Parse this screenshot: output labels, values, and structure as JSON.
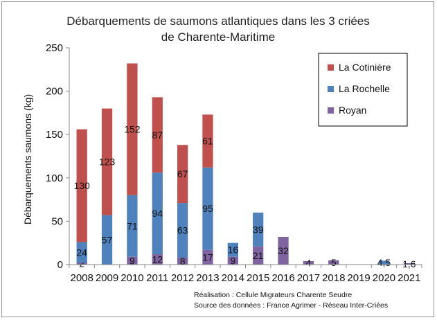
{
  "chart_data": {
    "type": "bar",
    "stacked": true,
    "title_line1": "Débarquements de saumons atlantiques dans les 3 criées",
    "title_line2": "de Charente-Maritime",
    "ylabel": "Débarquements saumons (kg)",
    "xlabel": "",
    "ylim": [
      0,
      250
    ],
    "yticks": [
      0,
      50,
      100,
      150,
      200,
      250
    ],
    "grid": "none",
    "legend_position": "top-right",
    "categories": [
      "2008",
      "2009",
      "2010",
      "2011",
      "2012",
      "2013",
      "2014",
      "2015",
      "2016",
      "2017",
      "2018",
      "2019",
      "2020",
      "2021"
    ],
    "series": [
      {
        "name": "Royan",
        "color": "#8064a2",
        "values": [
          2,
          0,
          9,
          12,
          8,
          17,
          9,
          21,
          32,
          4,
          5,
          0,
          0,
          1.6
        ],
        "labels": [
          "2",
          "",
          "9",
          "12",
          "8",
          "17",
          "9",
          "21",
          "32",
          "4",
          "5",
          "",
          "",
          "1,6"
        ]
      },
      {
        "name": "La Rochelle",
        "color": "#4f81bd",
        "values": [
          24,
          57,
          71,
          94,
          63,
          95,
          16,
          39,
          0,
          0,
          0,
          0,
          4.5,
          0
        ],
        "labels": [
          "24",
          "57",
          "71",
          "94",
          "63",
          "95",
          "16",
          "39",
          "",
          "",
          "",
          "",
          "4,5",
          ""
        ]
      },
      {
        "name": "La Cotinière",
        "color": "#c0504d",
        "values": [
          130,
          123,
          152,
          87,
          67,
          61,
          0,
          0,
          0,
          0,
          0,
          0,
          0,
          0
        ],
        "labels": [
          "130",
          "123",
          "152",
          "87",
          "67",
          "61",
          "",
          "",
          "",
          "",
          "",
          "",
          "",
          ""
        ]
      }
    ],
    "legend_order": [
      "La Cotinière",
      "La Rochelle",
      "Royan"
    ],
    "notes": [
      "Réalisation : Cellule Migrateurs Charente Seudre",
      "Source des données : France Agrimer - Réseau Inter-Criées"
    ]
  }
}
